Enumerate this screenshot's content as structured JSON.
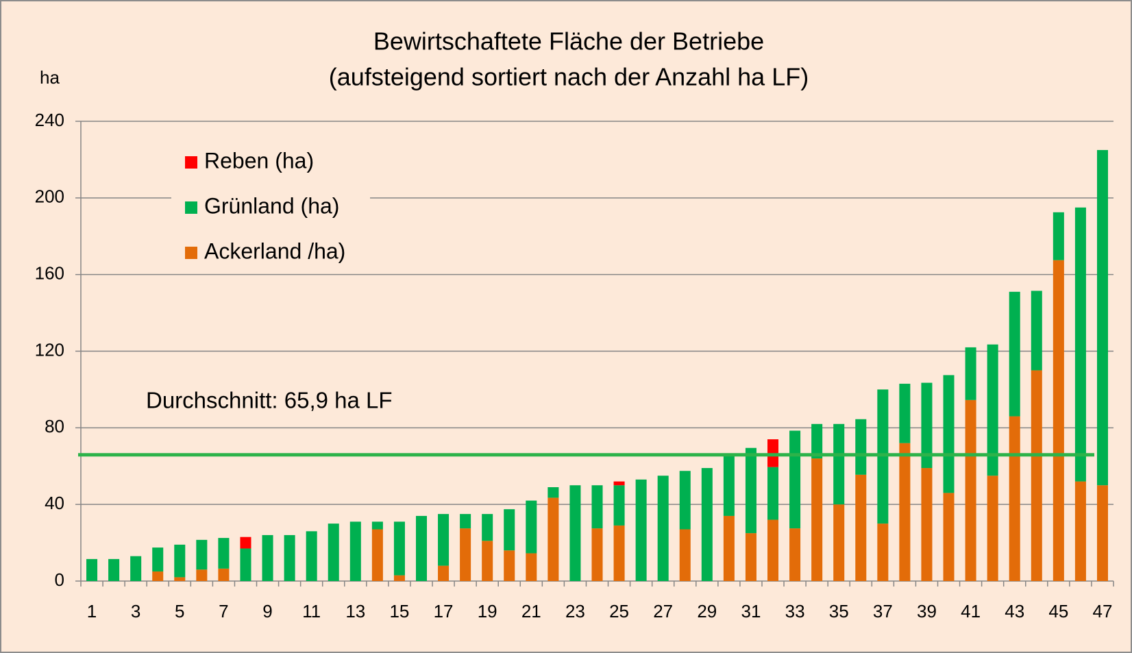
{
  "chart_data": {
    "type": "stacked_bar",
    "title": "Bewirtschaftete Fläche der Betriebe",
    "subtitle": "(aufsteigend sortiert nach der Anzahl ha LF)",
    "y_axis_label": "ha",
    "categories": [
      "1",
      null,
      "3",
      null,
      "5",
      null,
      "7",
      null,
      "9",
      null,
      "11",
      null,
      "13",
      null,
      "15",
      null,
      "17",
      null,
      "19",
      null,
      "21",
      null,
      "23",
      null,
      "25",
      null,
      "27",
      null,
      "29",
      null,
      "31",
      null,
      "33",
      null,
      "35",
      null,
      "37",
      null,
      "39",
      null,
      "41",
      null,
      "43",
      null,
      "45",
      null,
      "47"
    ],
    "series": [
      {
        "name": "Ackerland /ha)",
        "color": "#e36c09",
        "values": [
          0,
          0,
          0,
          5,
          2,
          6,
          6.5,
          0,
          0,
          0,
          0,
          0,
          0,
          27,
          3,
          0,
          8,
          27.5,
          21,
          16,
          14.5,
          43.5,
          0,
          27.5,
          29,
          0,
          0,
          27,
          0,
          34,
          25,
          32,
          27.5,
          64,
          40,
          55.5,
          30,
          72,
          59,
          46,
          94.5,
          55,
          86,
          110,
          167.5,
          52,
          50
        ]
      },
      {
        "name": "Grünland (ha)",
        "color": "#00b050",
        "values": [
          11.5,
          11.5,
          13,
          12.5,
          17,
          15.5,
          16,
          17,
          24,
          24,
          26,
          30,
          31,
          4,
          28,
          34,
          27,
          7.5,
          14,
          21.5,
          27.5,
          5.5,
          50,
          22.5,
          21,
          53,
          55,
          30.5,
          59,
          32,
          44.5,
          27.5,
          51,
          18,
          42,
          29,
          70,
          31,
          44.5,
          61.5,
          27.5,
          68.5,
          65,
          41.5,
          25,
          143,
          175
        ]
      },
      {
        "name": "Reben (ha)",
        "color": "#ff0000",
        "values": [
          0,
          0,
          0,
          0,
          0,
          0,
          0,
          6,
          0,
          0,
          0,
          0,
          0,
          0,
          0,
          0,
          0,
          0,
          0,
          0,
          0,
          0,
          0,
          0,
          2,
          0,
          0,
          0,
          0,
          0,
          0,
          14.5,
          0,
          0,
          0,
          0,
          0,
          0,
          0,
          0,
          0,
          0,
          0,
          0,
          0,
          0,
          0
        ]
      }
    ],
    "average": {
      "value": 65.9,
      "label": "Durchschnitt: 65,9 ha LF",
      "color": "#2db34a"
    },
    "ylim": [
      0,
      240
    ],
    "yticks": [
      0,
      40,
      80,
      120,
      160,
      200,
      240
    ],
    "grid": true,
    "legend": "top-left"
  }
}
